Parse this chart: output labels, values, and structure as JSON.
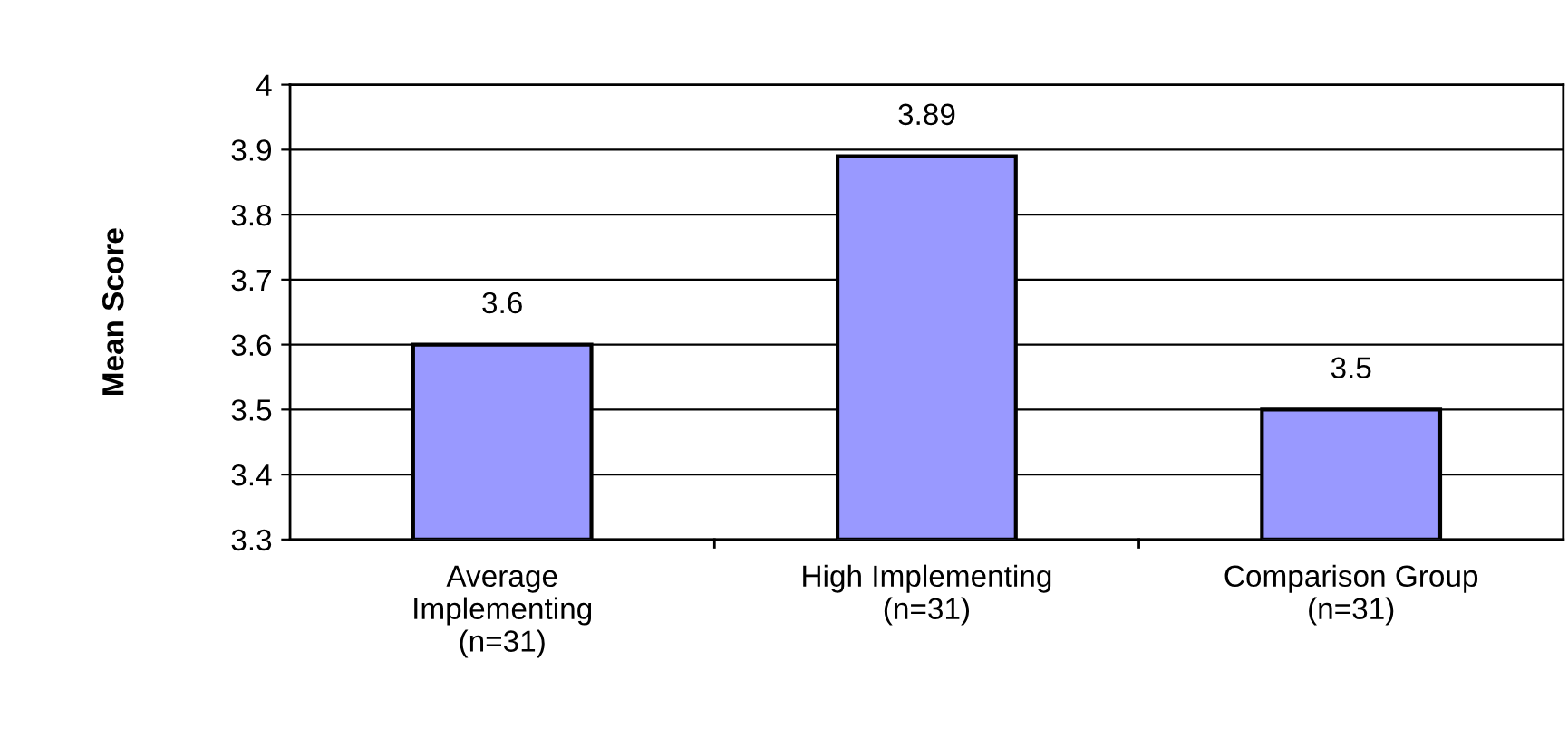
{
  "chart_data": {
    "type": "bar",
    "ylabel": "Mean Score",
    "categories": [
      "Average\nImplementing\n(n=31)",
      "High Implementing\n(n=31)",
      "Comparison Group\n(n=31)"
    ],
    "values": [
      3.6,
      3.89,
      3.5
    ],
    "color": "#9999ff",
    "ylim": [
      3.3,
      4
    ],
    "yticks": [
      3.3,
      3.4,
      3.5,
      3.6,
      3.7,
      3.8,
      3.9,
      4
    ],
    "grid": "y",
    "data_labels": true,
    "legend": false
  }
}
